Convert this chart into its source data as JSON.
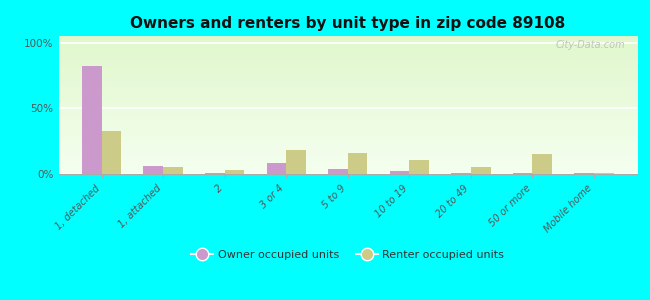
{
  "title": "Owners and renters by unit type in zip code 89108",
  "categories": [
    "1, detached",
    "1, attached",
    "2",
    "3 or 4",
    "5 to 9",
    "10 to 19",
    "20 to 49",
    "50 or more",
    "Mobile home"
  ],
  "owner_values": [
    82,
    6,
    0.5,
    8,
    4,
    2,
    0.5,
    0.5,
    1
  ],
  "renter_values": [
    33,
    5,
    3,
    18,
    16,
    11,
    5,
    15,
    1
  ],
  "owner_color": "#cc99cc",
  "renter_color": "#cccc88",
  "background_color": "#00ffff",
  "title_fontsize": 11,
  "ylabel_ticks": [
    0,
    50,
    100
  ],
  "ylim": [
    0,
    105
  ],
  "legend_owner": "Owner occupied units",
  "legend_renter": "Renter occupied units",
  "watermark": "City-Data.com"
}
